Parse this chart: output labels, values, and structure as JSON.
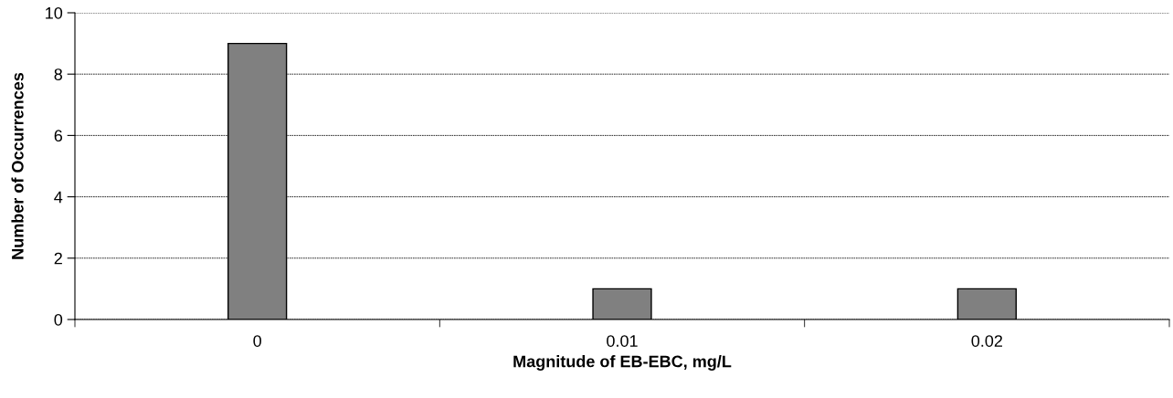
{
  "chart_data": {
    "type": "bar",
    "xlabel": "Magnitude of EB-EBC, mg/L",
    "ylabel": "Number of Occurrences",
    "categories": [
      "0",
      "0.01",
      "0.02"
    ],
    "values": [
      9,
      1,
      1
    ],
    "color": "#808080",
    "ylim": [
      0,
      10
    ],
    "yticks": [
      0,
      2,
      4,
      6,
      8,
      10
    ],
    "grid": "y"
  }
}
